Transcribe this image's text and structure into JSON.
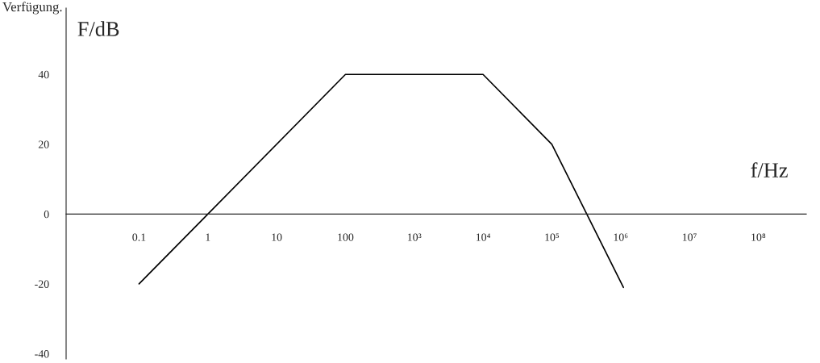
{
  "chart_data": {
    "type": "line",
    "xlabel": "f/Hz",
    "ylabel": "F/dB",
    "annotations": [
      "Verfügung."
    ],
    "x": [
      0.1,
      1,
      100,
      10000,
      100000,
      1100000
    ],
    "series": [
      {
        "color": "#000000",
        "values": [
          -20,
          0,
          40,
          40,
          20,
          -21
        ]
      }
    ],
    "log": "x",
    "xlim": [
      0.0087,
      500000000
    ],
    "ylim": [
      -41.5,
      59
    ],
    "xticks": [
      0.1,
      1,
      10,
      100,
      {
        "value": 1000,
        "label": "10³"
      },
      {
        "value": 10000,
        "label": "10⁴"
      },
      {
        "value": 100000,
        "label": "10⁵"
      },
      {
        "value": 1000000,
        "label": "10⁶"
      },
      {
        "value": 10000000,
        "label": "10⁷"
      },
      {
        "value": 100000000,
        "label": "10⁸"
      }
    ],
    "yticks": [
      40,
      20,
      0,
      {
        "value": -20,
        "label": "-20"
      },
      {
        "value": -40,
        "label": "-40"
      }
    ],
    "grid": false,
    "legend": false,
    "marker": "none",
    "line_style": "solid"
  }
}
